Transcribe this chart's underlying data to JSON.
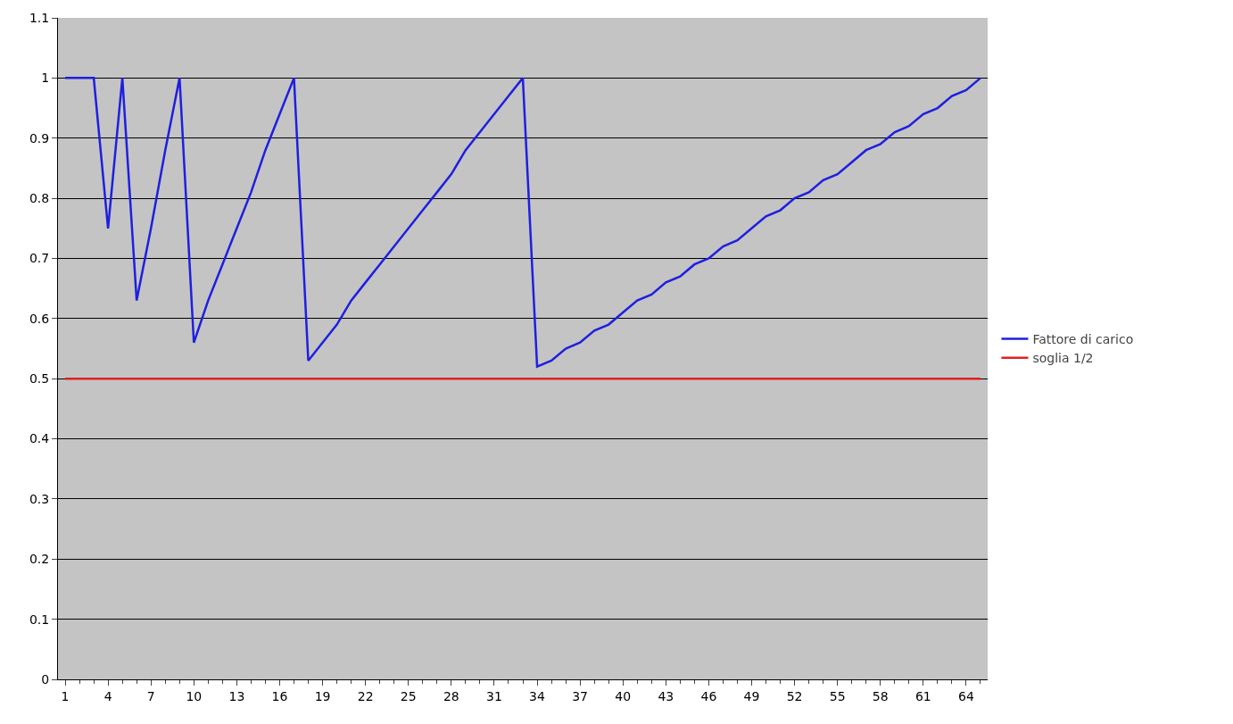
{
  "chart_data": {
    "type": "line",
    "categories": [
      "1",
      null,
      null,
      "4",
      null,
      null,
      "7",
      null,
      null,
      "10",
      null,
      null,
      "13",
      null,
      null,
      "16",
      null,
      null,
      "19",
      null,
      null,
      "22",
      null,
      null,
      "25",
      null,
      null,
      "28",
      null,
      null,
      "31",
      null,
      null,
      "34",
      null,
      null,
      "37",
      null,
      null,
      "40",
      null,
      null,
      "43",
      null,
      null,
      "46",
      null,
      null,
      "49",
      null,
      null,
      "52",
      null,
      null,
      "55",
      null,
      null,
      "58",
      null,
      null,
      "61",
      null,
      null,
      "64",
      null
    ],
    "series": [
      {
        "name": "Fattore di carico",
        "color": "#1f1fe0",
        "values": [
          1,
          1,
          1,
          0.75,
          1,
          0.63,
          0.75,
          0.88,
          1,
          0.56,
          0.63,
          0.69,
          0.75,
          0.81,
          0.88,
          0.94,
          1,
          0.53,
          0.56,
          0.59,
          0.63,
          0.66,
          0.69,
          0.72,
          0.75,
          0.78,
          0.81,
          0.84,
          0.88,
          0.91,
          0.94,
          0.97,
          1,
          0.52,
          0.53,
          0.55,
          0.56,
          0.58,
          0.59,
          0.61,
          0.63,
          0.64,
          0.66,
          0.67,
          0.69,
          0.7,
          0.72,
          0.73,
          0.75,
          0.77,
          0.78,
          0.8,
          0.81,
          0.83,
          0.84,
          0.86,
          0.88,
          0.89,
          0.91,
          0.92,
          0.94,
          0.95,
          0.97,
          0.98,
          1
        ]
      },
      {
        "name": "soglia 1/2",
        "color": "#e02020",
        "values": [
          0.5,
          0.5,
          0.5,
          0.5,
          0.5,
          0.5,
          0.5,
          0.5,
          0.5,
          0.5,
          0.5,
          0.5,
          0.5,
          0.5,
          0.5,
          0.5,
          0.5,
          0.5,
          0.5,
          0.5,
          0.5,
          0.5,
          0.5,
          0.5,
          0.5,
          0.5,
          0.5,
          0.5,
          0.5,
          0.5,
          0.5,
          0.5,
          0.5,
          0.5,
          0.5,
          0.5,
          0.5,
          0.5,
          0.5,
          0.5,
          0.5,
          0.5,
          0.5,
          0.5,
          0.5,
          0.5,
          0.5,
          0.5,
          0.5,
          0.5,
          0.5,
          0.5,
          0.5,
          0.5,
          0.5,
          0.5,
          0.5,
          0.5,
          0.5,
          0.5,
          0.5,
          0.5,
          0.5,
          0.5,
          0.5
        ]
      }
    ],
    "ylim": [
      0,
      1.1
    ],
    "yticks": [
      0,
      0.1,
      0.2,
      0.3,
      0.4,
      0.5,
      0.6,
      0.7,
      0.8,
      0.9,
      1,
      1.1
    ],
    "grid": "y",
    "legend": "right",
    "marker": "none",
    "line_style": "solid"
  }
}
